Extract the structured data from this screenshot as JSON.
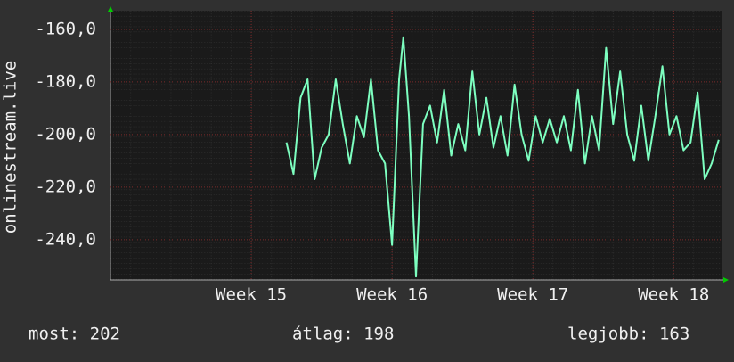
{
  "chart_data": {
    "type": "line",
    "ylabel": "onlinestream.live",
    "x": [
      15.25,
      15.3,
      15.35,
      15.4,
      15.45,
      15.5,
      15.55,
      15.6,
      15.65,
      15.7,
      15.75,
      15.8,
      15.85,
      15.9,
      15.95,
      16.0,
      16.05,
      16.08,
      16.12,
      16.17,
      16.22,
      16.27,
      16.32,
      16.37,
      16.42,
      16.47,
      16.52,
      16.57,
      16.62,
      16.67,
      16.72,
      16.77,
      16.82,
      16.87,
      16.92,
      16.97,
      17.02,
      17.07,
      17.12,
      17.17,
      17.22,
      17.27,
      17.32,
      17.37,
      17.42,
      17.47,
      17.52,
      17.57,
      17.62,
      17.67,
      17.72,
      17.77,
      17.82,
      17.87,
      17.92,
      17.97,
      18.02,
      18.07,
      18.12,
      18.17,
      18.22,
      18.27,
      18.32
    ],
    "values": [
      -203,
      -215,
      -186,
      -179,
      -217,
      -205,
      -200,
      -179,
      -196,
      -211,
      -193,
      -201,
      -179,
      -206,
      -211,
      -242,
      -179,
      -163,
      -193,
      -254,
      -196,
      -189,
      -203,
      -183,
      -208,
      -196,
      -206,
      -176,
      -200,
      -186,
      -205,
      -193,
      -208,
      -181,
      -200,
      -210,
      -193,
      -203,
      -194,
      -203,
      -193,
      -206,
      -183,
      -211,
      -193,
      -206,
      -167,
      -196,
      -176,
      -200,
      -210,
      -189,
      -210,
      -193,
      -174,
      -200,
      -193,
      -206,
      -203,
      -184,
      -217,
      -211,
      -202
    ],
    "color": "#7dffc0",
    "xlim": [
      14,
      18.34
    ],
    "xticks": [
      {
        "value": 15,
        "label": "Week 15"
      },
      {
        "value": 16,
        "label": "Week 16"
      },
      {
        "value": 17,
        "label": "Week 17"
      },
      {
        "value": 18,
        "label": "Week 18"
      }
    ],
    "ylim": [
      -255.3,
      -152.9
    ],
    "yticks": [
      {
        "value": -160,
        "label": "-160,0"
      },
      {
        "value": -180,
        "label": "-180,0"
      },
      {
        "value": -200,
        "label": "-200,0"
      },
      {
        "value": -220,
        "label": "-220,0"
      },
      {
        "value": -240,
        "label": "-240,0"
      }
    ],
    "grid": true,
    "stats": [
      "most: 202",
      "átlag: 198",
      "legjobb: 163"
    ]
  }
}
